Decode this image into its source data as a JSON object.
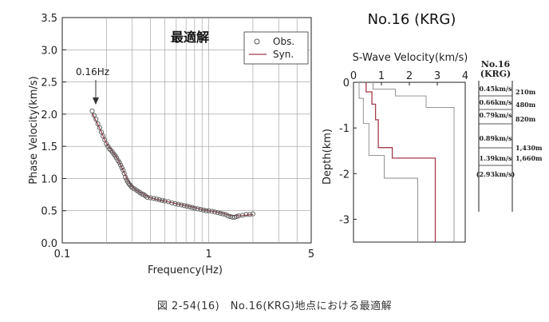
{
  "chart_data": [
    {
      "type": "scatter",
      "title": "最適解",
      "xlabel": "Frequency(Hz)",
      "ylabel": "Phase Velocity(km/s)",
      "xscale": "log",
      "xlim": [
        0.1,
        5
      ],
      "ylim": [
        0,
        3.5
      ],
      "x_ticks": [
        "0.1",
        "1",
        "5"
      ],
      "y_ticks": [
        "0.0",
        "0.5",
        "1.0",
        "1.5",
        "2.0",
        "2.5",
        "3.0",
        "3.5"
      ],
      "grid": true,
      "legend": "top-right",
      "annotation": "0.16Hz",
      "series": [
        {
          "name": "Obs.",
          "marker": "open-circle",
          "color": "#555555",
          "x": [
            0.16,
            0.165,
            0.17,
            0.175,
            0.18,
            0.185,
            0.19,
            0.195,
            0.2,
            0.205,
            0.21,
            0.215,
            0.22,
            0.225,
            0.23,
            0.235,
            0.24,
            0.245,
            0.25,
            0.255,
            0.26,
            0.265,
            0.27,
            0.275,
            0.28,
            0.285,
            0.29,
            0.295,
            0.3,
            0.31,
            0.32,
            0.33,
            0.34,
            0.35,
            0.36,
            0.37,
            0.38,
            0.4,
            0.42,
            0.44,
            0.46,
            0.48,
            0.5,
            0.53,
            0.56,
            0.59,
            0.62,
            0.65,
            0.68,
            0.71,
            0.74,
            0.77,
            0.8,
            0.84,
            0.88,
            0.92,
            0.96,
            1.0,
            1.05,
            1.1,
            1.15,
            1.2,
            1.25,
            1.3,
            1.35,
            1.4,
            1.45,
            1.5,
            1.55,
            1.6,
            1.7,
            1.8,
            1.9,
            2.0
          ],
          "y": [
            2.05,
            1.98,
            1.92,
            1.85,
            1.79,
            1.72,
            1.66,
            1.6,
            1.54,
            1.5,
            1.46,
            1.44,
            1.41,
            1.38,
            1.35,
            1.32,
            1.28,
            1.25,
            1.21,
            1.17,
            1.13,
            1.08,
            1.02,
            0.98,
            0.95,
            0.92,
            0.9,
            0.88,
            0.86,
            0.84,
            0.82,
            0.8,
            0.78,
            0.76,
            0.75,
            0.73,
            0.71,
            0.7,
            0.69,
            0.68,
            0.67,
            0.66,
            0.65,
            0.64,
            0.62,
            0.61,
            0.6,
            0.59,
            0.58,
            0.57,
            0.56,
            0.55,
            0.54,
            0.53,
            0.52,
            0.51,
            0.5,
            0.5,
            0.49,
            0.48,
            0.47,
            0.46,
            0.45,
            0.44,
            0.42,
            0.41,
            0.4,
            0.4,
            0.41,
            0.42,
            0.43,
            0.44,
            0.44,
            0.45
          ]
        },
        {
          "name": "Syn.",
          "color": "#a33a4a",
          "x": [
            0.16,
            0.18,
            0.2,
            0.22,
            0.24,
            0.26,
            0.28,
            0.3,
            0.33,
            0.36,
            0.4,
            0.45,
            0.5,
            0.6,
            0.7,
            0.8,
            0.9,
            1.0,
            1.2,
            1.4,
            1.6,
            1.8,
            2.0
          ],
          "y": [
            2.02,
            1.78,
            1.55,
            1.42,
            1.3,
            1.13,
            0.97,
            0.87,
            0.8,
            0.75,
            0.7,
            0.67,
            0.65,
            0.61,
            0.58,
            0.55,
            0.52,
            0.5,
            0.47,
            0.43,
            0.42,
            0.43,
            0.44
          ]
        }
      ]
    },
    {
      "type": "line",
      "title": "S-Wave Velocity(km/s)",
      "xlabel": "",
      "ylabel": "Depth(km)",
      "xlim": [
        0,
        4
      ],
      "ylim": [
        -3.5,
        0
      ],
      "x_ticks": [
        "0",
        "1",
        "2",
        "3",
        "4"
      ],
      "y_ticks": [
        "0",
        "-1",
        "-2",
        "-3"
      ],
      "series": [
        {
          "role": "best-fit",
          "color": "#a33a4a",
          "velocity": [
            0.45,
            0.45,
            0.66,
            0.66,
            0.79,
            0.79,
            0.89,
            0.89,
            1.39,
            1.39,
            2.93,
            2.93
          ],
          "depth": [
            0,
            -0.21,
            -0.21,
            -0.48,
            -0.48,
            -0.82,
            -0.82,
            -1.43,
            -1.43,
            -1.66,
            -1.66,
            -3.5
          ]
        },
        {
          "role": "upper-bound",
          "color": "#888888",
          "velocity": [
            0.7,
            0.7,
            1.5,
            1.5,
            2.6,
            2.6,
            3.6,
            3.6
          ],
          "depth": [
            0,
            -0.15,
            -0.15,
            -0.3,
            -0.3,
            -0.55,
            -0.55,
            -3.5
          ]
        },
        {
          "role": "lower-bound",
          "color": "#888888",
          "velocity": [
            0.2,
            0.2,
            0.35,
            0.35,
            0.55,
            0.55,
            1.1,
            1.1,
            2.3,
            2.3
          ],
          "depth": [
            0,
            -0.35,
            -0.35,
            -0.9,
            -0.9,
            -1.6,
            -1.6,
            -2.1,
            -2.1,
            -3.5
          ]
        }
      ]
    }
  ],
  "model_column": {
    "title_line1": "No.16",
    "title_line2": "(KRG)",
    "velocities": [
      "0.45km/s",
      "0.66km/s",
      "0.79km/s",
      "0.89km/s",
      "1.39km/s",
      "(2.93km/s)"
    ],
    "depths": [
      "210m",
      "480m",
      "820m",
      "1,430m",
      "1,660m"
    ]
  },
  "site_title": "No.16 (KRG)",
  "caption": "図 2-54(16)　No.16(KRG)地点における最適解"
}
